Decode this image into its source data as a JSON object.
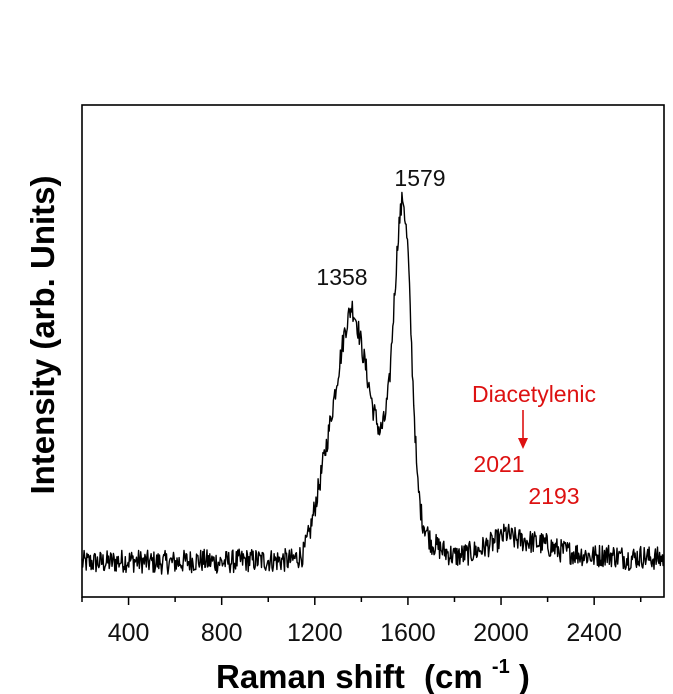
{
  "chart_data": {
    "type": "line",
    "title": "",
    "xlabel": "Raman shift",
    "xlabel_unit_base": "(cm",
    "xlabel_unit_exp": "-1",
    "xlabel_unit_close": ")",
    "ylabel": "Intensity (arb. Units)",
    "xlim": [
      200,
      2700
    ],
    "ylim": [
      0,
      1
    ],
    "y_ticks_shown": false,
    "grid": false,
    "legend": "none",
    "x_ticks": [
      400,
      800,
      1200,
      1600,
      2000,
      2400
    ],
    "series": [
      {
        "color": "#000000",
        "x": [
          200,
          300,
          400,
          500,
          600,
          700,
          800,
          900,
          1000,
          1100,
          1150,
          1180,
          1220,
          1260,
          1300,
          1330,
          1358,
          1380,
          1400,
          1420,
          1450,
          1480,
          1500,
          1520,
          1540,
          1560,
          1579,
          1600,
          1620,
          1640,
          1660,
          1700,
          1750,
          1800,
          1850,
          1900,
          1950,
          2000,
          2021,
          2050,
          2100,
          2150,
          2193,
          2250,
          2300,
          2350,
          2400,
          2450,
          2500,
          2550,
          2600,
          2650,
          2700
        ],
        "y": [
          0.07,
          0.07,
          0.075,
          0.07,
          0.07,
          0.075,
          0.07,
          0.075,
          0.075,
          0.075,
          0.09,
          0.15,
          0.27,
          0.4,
          0.55,
          0.66,
          0.72,
          0.68,
          0.62,
          0.56,
          0.46,
          0.4,
          0.43,
          0.52,
          0.72,
          0.92,
          1.0,
          0.86,
          0.55,
          0.28,
          0.18,
          0.12,
          0.1,
          0.085,
          0.09,
          0.1,
          0.115,
          0.13,
          0.145,
          0.13,
          0.125,
          0.12,
          0.115,
          0.1,
          0.095,
          0.09,
          0.085,
          0.09,
          0.085,
          0.08,
          0.085,
          0.08,
          0.08
        ],
        "noise_amplitude": 0.03
      }
    ],
    "annotations": [
      {
        "text": "1358",
        "x": 1358,
        "color": "#111111"
      },
      {
        "text": "1579",
        "x": 1579,
        "color": "#111111"
      },
      {
        "text": "Diacetylenic",
        "x": 2100,
        "color": "#dd1111"
      },
      {
        "text": "2021",
        "x": 2021,
        "color": "#dd1111"
      },
      {
        "text": "2193",
        "x": 2193,
        "color": "#dd1111"
      }
    ]
  }
}
